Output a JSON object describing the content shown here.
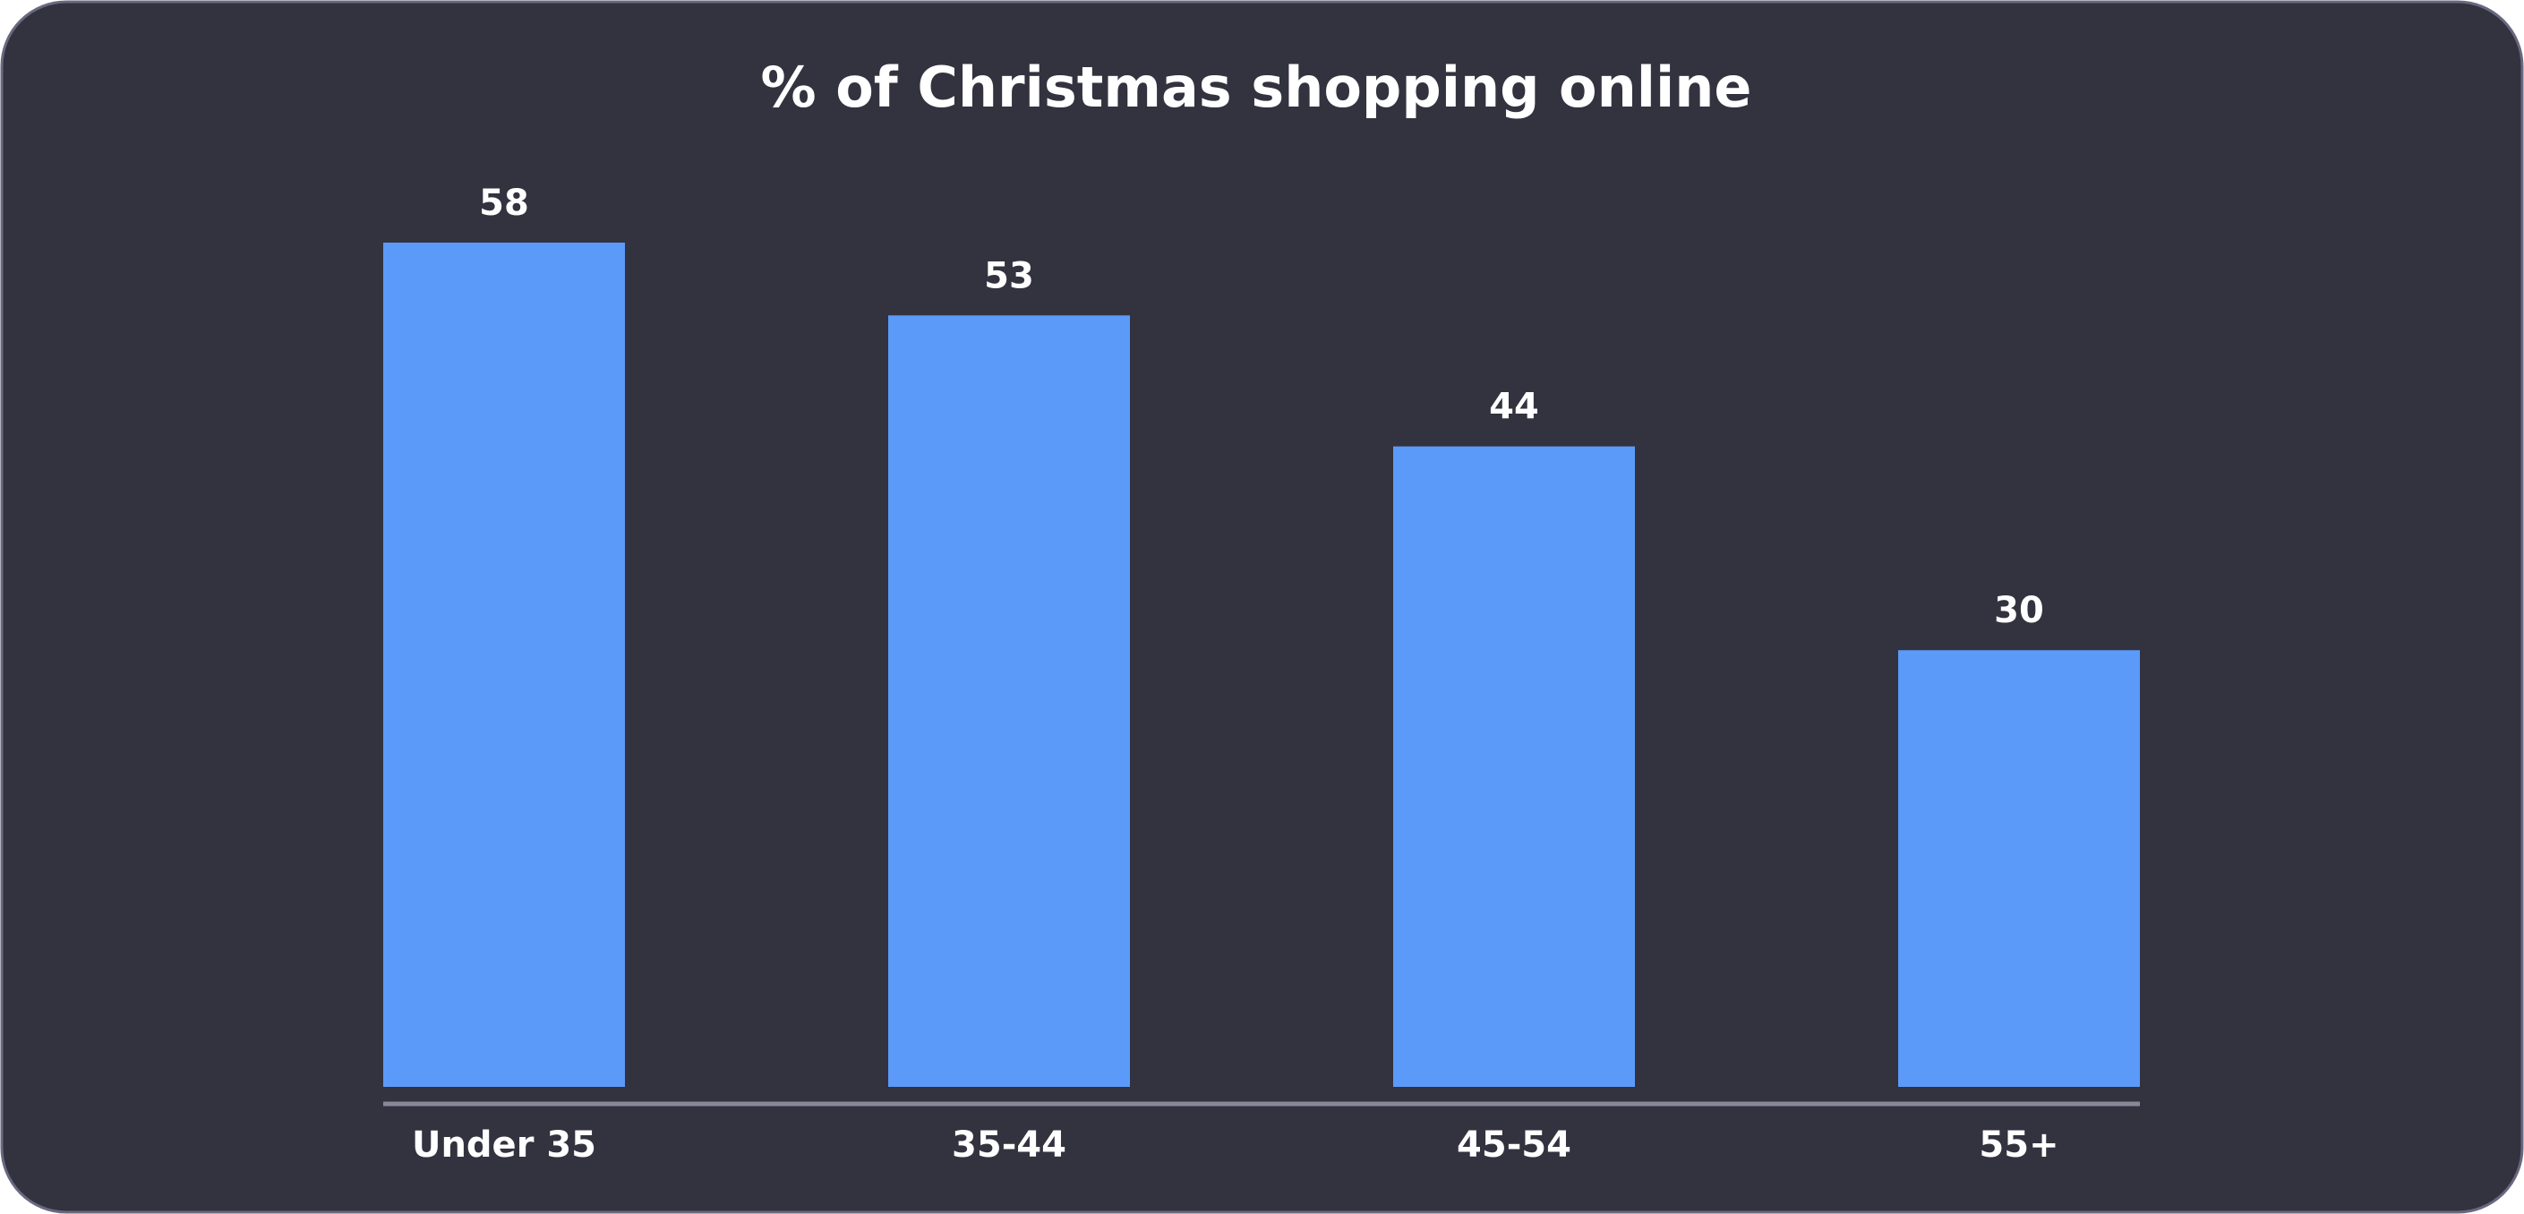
{
  "chart_data": {
    "type": "bar",
    "title": "% of Christmas shopping online",
    "categories": [
      "Under 35",
      "35-44",
      "45-54",
      "55+"
    ],
    "values": [
      58,
      53,
      44,
      30
    ],
    "color": "#5b9af8"
  }
}
